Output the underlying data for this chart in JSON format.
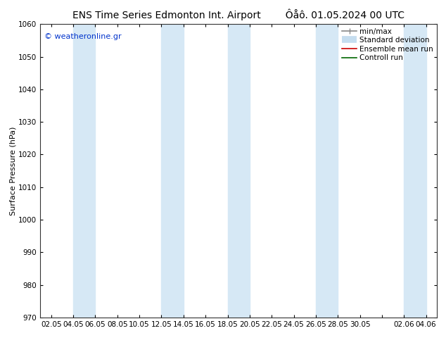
{
  "title_left": "ENS Time Series Edmonton Int. Airport",
  "title_right": "Ôåô. 01.05.2024 00 UTC",
  "ylabel": "Surface Pressure (hPa)",
  "ylim": [
    970,
    1060
  ],
  "yticks": [
    970,
    980,
    990,
    1000,
    1010,
    1020,
    1030,
    1040,
    1050,
    1060
  ],
  "xtick_labels": [
    "02.05",
    "04.05",
    "06.05",
    "08.05",
    "10.05",
    "12.05",
    "14.05",
    "16.05",
    "18.05",
    "20.05",
    "22.05",
    "24.05",
    "26.05",
    "28.05",
    "30.05",
    "",
    "02.06",
    "04.06"
  ],
  "band_color": "#d6e8f5",
  "background_color": "#ffffff",
  "watermark": "© weatheronline.gr",
  "legend_items": [
    {
      "label": "min/max"
    },
    {
      "label": "Standard deviation"
    },
    {
      "label": "Ensemble mean run"
    },
    {
      "label": "Controll run"
    }
  ],
  "title_fontsize": 10,
  "tick_fontsize": 7.5,
  "ylabel_fontsize": 8,
  "watermark_fontsize": 8,
  "legend_fontsize": 7.5
}
